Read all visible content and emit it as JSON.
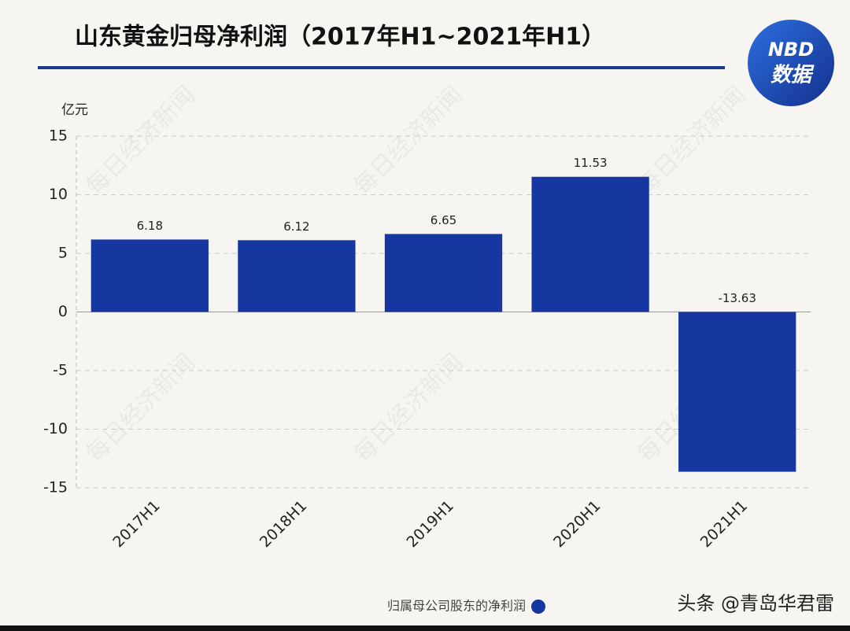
{
  "chart_data": {
    "type": "bar",
    "title": "山东黄金归母净利润（2017年H1~2021年H1）",
    "y_label": "亿元",
    "categories": [
      "2017H1",
      "2018H1",
      "2019H1",
      "2020H1",
      "2021H1"
    ],
    "series": [
      {
        "name": "归属母公司股东的净利润",
        "color": "#1636a0",
        "values": [
          6.18,
          6.12,
          6.65,
          11.53,
          -13.63
        ]
      }
    ],
    "ylim": [
      -15,
      15
    ],
    "yticks": [
      -15,
      -10,
      -5,
      0,
      5,
      10,
      15
    ],
    "grid": true,
    "legend": "bottom"
  },
  "logo": {
    "top": "NBD",
    "bottom": "数据"
  },
  "watermark": "每日经济新闻",
  "footer": "头条 @青岛华君雷"
}
